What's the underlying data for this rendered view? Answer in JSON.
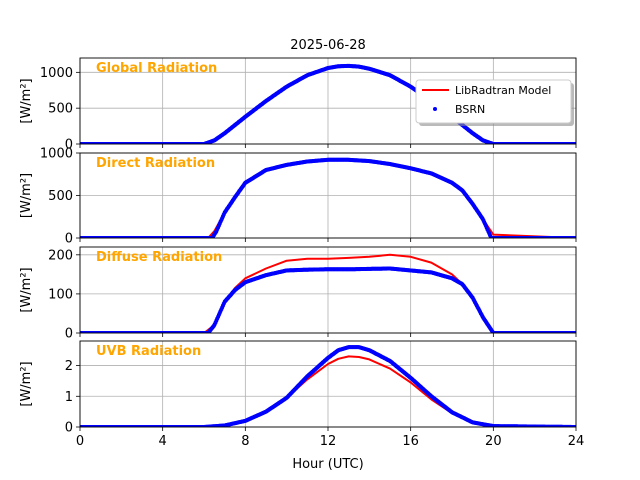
{
  "figure_title": "2025-06-28",
  "xlabel": "Hour (UTC)",
  "legend": {
    "model_label": "LibRadtran Model",
    "obs_label": "BSRN",
    "placement": "top-right of first panel"
  },
  "colors": {
    "model": "#ff0000",
    "obs": "#0000ff",
    "panel_title": "#ffa500",
    "grid": "#b0b0b0"
  },
  "chart_data": [
    {
      "type": "line",
      "title": "Global Radiation",
      "ylabel": "[W/m²]",
      "xlim": [
        0,
        24
      ],
      "ylim": [
        0,
        1200
      ],
      "xticks": [
        0,
        4,
        8,
        12,
        16,
        20,
        24
      ],
      "yticks": [
        0,
        500,
        1000
      ],
      "grid": true,
      "series": [
        {
          "name": "LibRadtran Model",
          "color": "#ff0000",
          "x": [
            0,
            6.0,
            6.5,
            7,
            8,
            9,
            10,
            11,
            12,
            12.5,
            13,
            13.5,
            14,
            15,
            16,
            17,
            18,
            19,
            19.5,
            20,
            24
          ],
          "y": [
            0,
            0,
            50,
            150,
            380,
            600,
            800,
            960,
            1060,
            1085,
            1090,
            1080,
            1050,
            960,
            800,
            600,
            380,
            150,
            50,
            0,
            0
          ]
        },
        {
          "name": "BSRN",
          "color": "#0000ff",
          "x": [
            0,
            6.0,
            6.5,
            7,
            8,
            9,
            10,
            11,
            12,
            12.5,
            13,
            13.5,
            14,
            15,
            16,
            17,
            18,
            19,
            19.5,
            20,
            24
          ],
          "y": [
            0,
            0,
            50,
            150,
            380,
            600,
            800,
            960,
            1060,
            1085,
            1090,
            1080,
            1050,
            960,
            800,
            600,
            380,
            150,
            50,
            0,
            0
          ]
        }
      ]
    },
    {
      "type": "line",
      "title": "Direct Radiation",
      "ylabel": "[W/m²]",
      "xlim": [
        0,
        24
      ],
      "ylim": [
        0,
        1000
      ],
      "xticks": [
        0,
        4,
        8,
        12,
        16,
        20,
        24
      ],
      "yticks": [
        0,
        500,
        1000
      ],
      "grid": true,
      "series": [
        {
          "name": "LibRadtran Model",
          "color": "#ff0000",
          "x": [
            0,
            6.2,
            6.5,
            7,
            7.5,
            8,
            9,
            10,
            11,
            12,
            13,
            14,
            15,
            16,
            17,
            18,
            18.5,
            19,
            19.5,
            20,
            24
          ],
          "y": [
            0,
            0,
            80,
            300,
            480,
            650,
            800,
            860,
            900,
            920,
            920,
            905,
            870,
            820,
            760,
            650,
            560,
            400,
            220,
            40,
            0
          ]
        },
        {
          "name": "BSRN",
          "color": "#0000ff",
          "x": [
            0,
            6.4,
            6.6,
            7,
            7.5,
            8,
            9,
            10,
            11,
            12,
            13,
            14,
            15,
            16,
            17,
            18,
            18.5,
            19,
            19.5,
            19.9,
            24
          ],
          "y": [
            0,
            0,
            80,
            300,
            480,
            650,
            800,
            860,
            900,
            920,
            920,
            905,
            870,
            820,
            760,
            650,
            560,
            400,
            220,
            0,
            0
          ]
        }
      ]
    },
    {
      "type": "line",
      "title": "Diffuse Radiation",
      "ylabel": "[W/m²]",
      "xlim": [
        0,
        24
      ],
      "ylim": [
        0,
        220
      ],
      "xticks": [
        0,
        4,
        8,
        12,
        16,
        20,
        24
      ],
      "yticks": [
        0,
        100,
        200
      ],
      "grid": true,
      "series": [
        {
          "name": "LibRadtran Model",
          "color": "#ff0000",
          "x": [
            0,
            6.0,
            6.5,
            7,
            7.5,
            8,
            9,
            10,
            11,
            12,
            13,
            14,
            15,
            16,
            17,
            18,
            18.5,
            19,
            19.5,
            20,
            24
          ],
          "y": [
            0,
            0,
            20,
            80,
            115,
            140,
            165,
            185,
            190,
            190,
            192,
            195,
            200,
            195,
            180,
            150,
            125,
            90,
            40,
            0,
            0
          ]
        },
        {
          "name": "BSRN",
          "color": "#0000ff",
          "x": [
            0,
            6.2,
            6.5,
            7,
            7.5,
            8,
            9,
            10,
            11,
            12,
            13,
            14,
            15,
            16,
            17,
            18,
            18.5,
            19,
            19.5,
            20,
            24
          ],
          "y": [
            0,
            0,
            20,
            80,
            110,
            130,
            148,
            160,
            162,
            163,
            163,
            164,
            165,
            160,
            155,
            140,
            125,
            90,
            40,
            0,
            0
          ]
        }
      ]
    },
    {
      "type": "line",
      "title": "UVB Radiation",
      "ylabel": "[W/m²]",
      "xlim": [
        0,
        24
      ],
      "ylim": [
        0,
        2.8
      ],
      "xticks": [
        0,
        4,
        8,
        12,
        16,
        20,
        24
      ],
      "yticks": [
        0,
        1,
        2
      ],
      "grid": true,
      "series": [
        {
          "name": "LibRadtran Model",
          "color": "#ff0000",
          "x": [
            0,
            6,
            7,
            8,
            9,
            10,
            11,
            12,
            12.5,
            13,
            13.5,
            14,
            15,
            16,
            17,
            18,
            19,
            20,
            24
          ],
          "y": [
            0,
            0,
            0.05,
            0.2,
            0.5,
            0.95,
            1.55,
            2.05,
            2.22,
            2.3,
            2.28,
            2.2,
            1.9,
            1.45,
            0.9,
            0.45,
            0.15,
            0.03,
            0
          ]
        },
        {
          "name": "BSRN",
          "color": "#0000ff",
          "x": [
            0,
            6,
            7,
            8,
            9,
            10,
            11,
            12,
            12.5,
            13,
            13.5,
            14,
            15,
            16,
            17,
            18,
            19,
            20,
            24
          ],
          "y": [
            0,
            0,
            0.05,
            0.2,
            0.5,
            0.95,
            1.65,
            2.25,
            2.5,
            2.6,
            2.6,
            2.5,
            2.15,
            1.6,
            1.0,
            0.48,
            0.15,
            0.03,
            0
          ]
        }
      ]
    }
  ]
}
